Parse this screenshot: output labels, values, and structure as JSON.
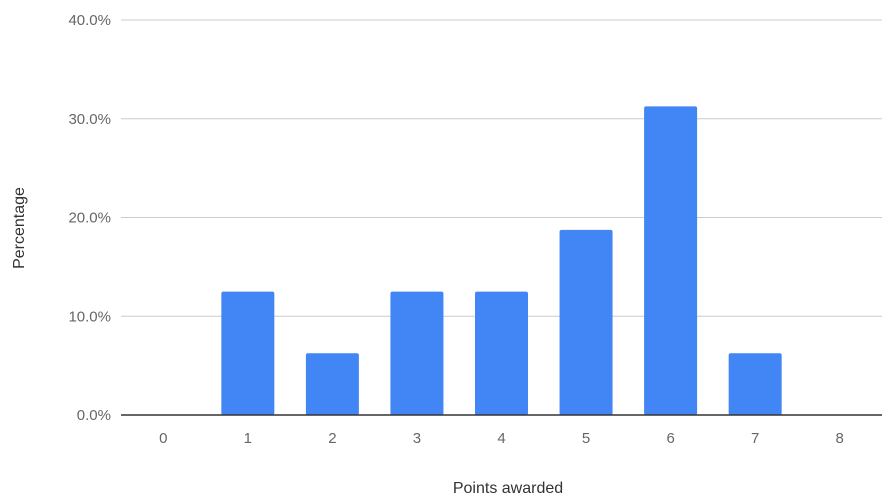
{
  "chart_data": {
    "type": "bar",
    "title": "",
    "xlabel": "Points awarded",
    "ylabel": "Percentage",
    "categories": [
      "0",
      "1",
      "2",
      "3",
      "4",
      "5",
      "6",
      "7",
      "8"
    ],
    "values": [
      0.0,
      12.5,
      6.25,
      12.5,
      12.5,
      18.75,
      31.25,
      6.25,
      0.0
    ],
    "ylim": [
      0,
      40
    ],
    "yticks": [
      0,
      10,
      20,
      30,
      40
    ],
    "ytick_labels": [
      "0.0%",
      "10.0%",
      "20.0%",
      "30.0%",
      "40.0%"
    ],
    "grid": true,
    "legend": "none",
    "bar_color": "#4285f4"
  }
}
